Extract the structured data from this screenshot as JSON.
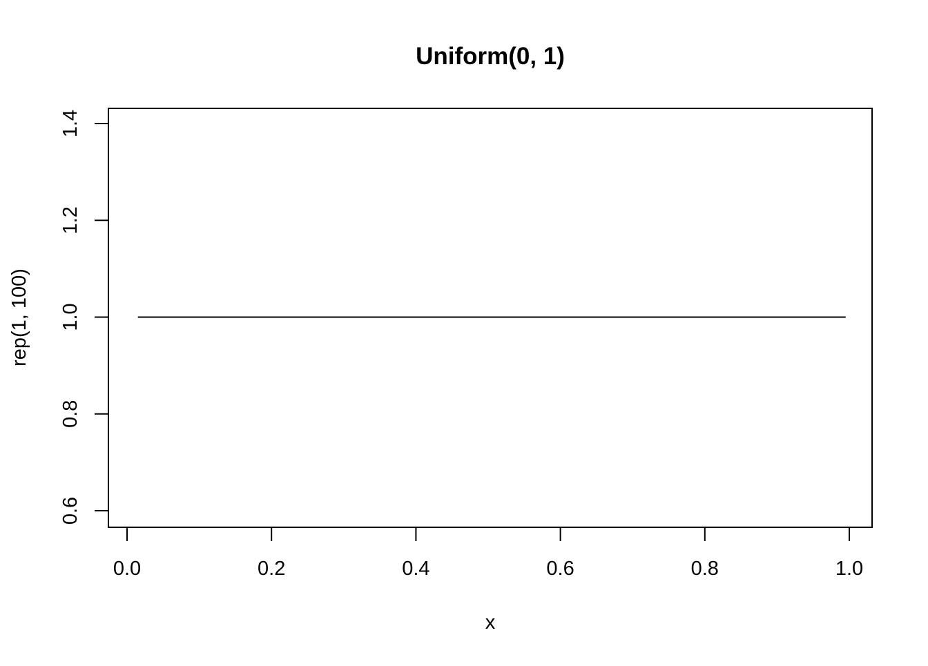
{
  "chart_data": {
    "type": "line",
    "title": "Uniform(0, 1)",
    "xlabel": "x",
    "ylabel": "rep(1, 100)",
    "xlim": [
      0.0,
      1.0
    ],
    "ylim": [
      0.6,
      1.4
    ],
    "x_ticks": [
      "0.0",
      "0.2",
      "0.4",
      "0.6",
      "0.8",
      "1.0"
    ],
    "y_ticks": [
      "0.6",
      "0.8",
      "1.0",
      "1.2",
      "1.4"
    ],
    "grid": false,
    "series": [
      {
        "x": [
          0.015,
          0.995
        ],
        "values": [
          1.0,
          1.0
        ],
        "color": "#000000"
      }
    ]
  }
}
